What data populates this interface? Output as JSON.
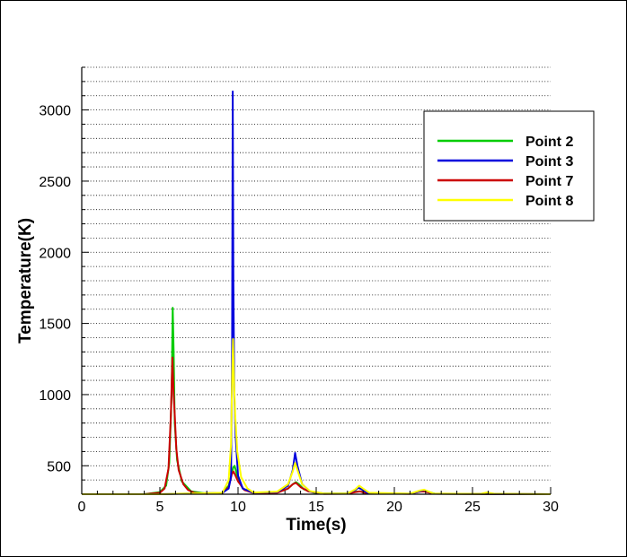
{
  "chart_data": {
    "type": "line",
    "title": "",
    "xlabel": "Time(s)",
    "ylabel": "Temperature(K)",
    "xlim": [
      0,
      30
    ],
    "ylim": [
      300,
      3300
    ],
    "x_ticks": [
      0,
      5,
      10,
      15,
      20,
      25,
      30
    ],
    "y_ticks": [
      500,
      1000,
      1500,
      2000,
      2500,
      3000
    ],
    "grid": "horizontal dotted",
    "legend_position": "top-right",
    "series": [
      {
        "name": "Point 2",
        "color": "#00cc00",
        "x": [
          0,
          4.0,
          5.0,
          5.4,
          5.6,
          5.75,
          5.82,
          5.88,
          5.95,
          6.1,
          6.4,
          7.0,
          8.0,
          9.0,
          9.4,
          9.6,
          9.7,
          9.78,
          9.85,
          10.0,
          10.3,
          11.0,
          12.5,
          13.2,
          13.5,
          13.7,
          13.9,
          14.2,
          15.0,
          17.0,
          17.5,
          17.8,
          18.1,
          18.5,
          21.0,
          21.7,
          22.0,
          22.6,
          30
        ],
        "y": [
          300,
          300,
          315,
          360,
          520,
          1000,
          1610,
          1300,
          800,
          540,
          390,
          320,
          305,
          310,
          360,
          450,
          490,
          500,
          470,
          410,
          340,
          310,
          312,
          340,
          370,
          385,
          370,
          335,
          305,
          305,
          318,
          320,
          314,
          303,
          303,
          320,
          322,
          303,
          300
        ]
      },
      {
        "name": "Point 3",
        "color": "#0000dd",
        "x": [
          0,
          5.0,
          9.0,
          9.4,
          9.55,
          9.62,
          9.66,
          9.7,
          9.76,
          9.85,
          10.0,
          10.3,
          11.0,
          12.5,
          13.2,
          13.5,
          13.65,
          13.8,
          14.1,
          14.6,
          15.5,
          17.0,
          17.5,
          17.7,
          17.9,
          18.3,
          21.0,
          21.6,
          21.9,
          22.5,
          30
        ],
        "y": [
          300,
          300,
          310,
          340,
          420,
          1300,
          3130,
          1800,
          1000,
          700,
          430,
          340,
          310,
          315,
          360,
          470,
          590,
          500,
          370,
          320,
          305,
          305,
          330,
          345,
          335,
          308,
          303,
          320,
          330,
          304,
          300
        ]
      },
      {
        "name": "Point 7",
        "color": "#cc0000",
        "x": [
          0,
          4.0,
          5.0,
          5.3,
          5.55,
          5.7,
          5.8,
          5.88,
          5.95,
          6.05,
          6.2,
          6.5,
          6.8,
          7.2,
          8.0,
          9.0,
          9.4,
          9.6,
          9.7,
          9.8,
          10.0,
          10.4,
          11.0,
          12.5,
          13.2,
          13.5,
          13.7,
          14.0,
          14.5,
          15.5,
          17.0,
          17.5,
          17.8,
          18.2,
          21.0,
          21.6,
          21.9,
          22.5,
          30
        ],
        "y": [
          300,
          300,
          310,
          340,
          480,
          850,
          1260,
          1000,
          860,
          620,
          470,
          370,
          330,
          310,
          302,
          308,
          350,
          440,
          460,
          440,
          390,
          330,
          308,
          310,
          340,
          370,
          380,
          350,
          320,
          302,
          303,
          315,
          320,
          306,
          302,
          318,
          320,
          303,
          300
        ]
      },
      {
        "name": "Point 8",
        "color": "#ffff00",
        "x": [
          0,
          5.0,
          9.0,
          9.4,
          9.55,
          9.62,
          9.68,
          9.74,
          9.82,
          9.95,
          10.2,
          10.6,
          11.0,
          12.5,
          13.2,
          13.5,
          13.65,
          13.8,
          14.1,
          14.6,
          15.5,
          17.0,
          17.5,
          17.75,
          18.0,
          18.4,
          21.0,
          21.6,
          21.9,
          22.5,
          25.5,
          25.9,
          26.4,
          30
        ],
        "y": [
          300,
          300,
          310,
          400,
          650,
          1100,
          1390,
          1100,
          850,
          600,
          420,
          340,
          312,
          318,
          370,
          460,
          520,
          470,
          370,
          322,
          305,
          305,
          335,
          360,
          340,
          310,
          304,
          325,
          332,
          305,
          302,
          312,
          303,
          300
        ]
      }
    ]
  }
}
